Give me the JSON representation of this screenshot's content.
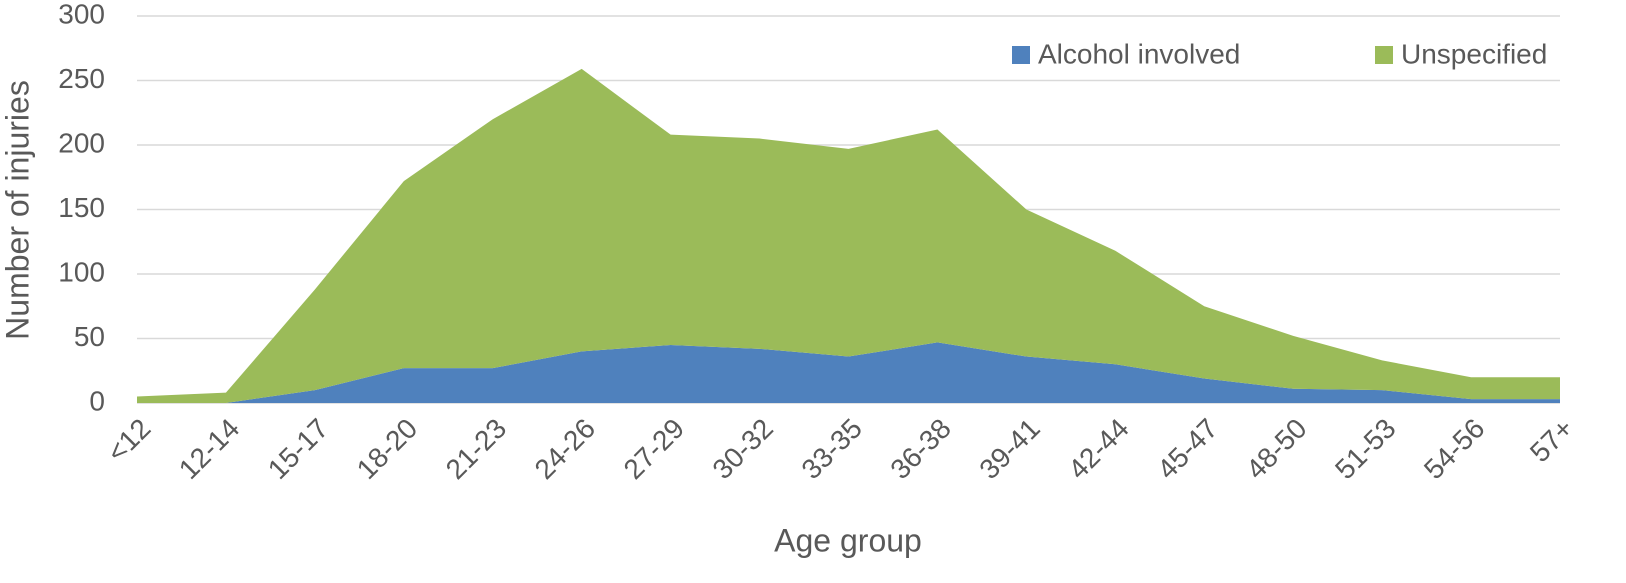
{
  "chart_data": {
    "type": "stacked-area",
    "x_label": "Age group",
    "y_label": "Number of injuries",
    "categories": [
      "<12",
      "12-14",
      "15-17",
      "18-20",
      "21-23",
      "24-26",
      "27-29",
      "30-32",
      "33-35",
      "36-38",
      "39-41",
      "42-44",
      "45-47",
      "48-50",
      "51-53",
      "54-56",
      "57+"
    ],
    "series": [
      {
        "name": "Alcohol involved",
        "color": "#4f81bd",
        "values": [
          0,
          0,
          10,
          27,
          27,
          40,
          45,
          42,
          36,
          47,
          36,
          30,
          19,
          11,
          10,
          3,
          3
        ]
      },
      {
        "name": "Unspecified",
        "color": "#9bbb59",
        "values": [
          5,
          8,
          78,
          145,
          193,
          219,
          163,
          163,
          161,
          165,
          114,
          88,
          56,
          41,
          23,
          17,
          17
        ]
      }
    ],
    "ylim": [
      0,
      300
    ],
    "yticks": [
      0,
      50,
      100,
      150,
      200,
      250,
      300
    ],
    "grid": true,
    "legend": "top-right"
  }
}
